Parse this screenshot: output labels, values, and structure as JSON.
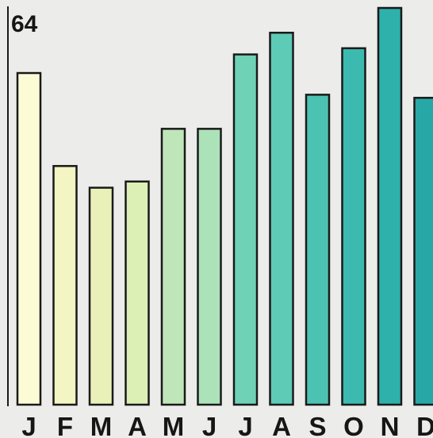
{
  "chart_data": {
    "type": "bar",
    "title": "",
    "xlabel": "",
    "ylabel": "",
    "ylim": [
      0,
      64
    ],
    "y_axis_max_label": "64",
    "grid": false,
    "legend": "none",
    "categories": [
      "J",
      "F",
      "M",
      "A",
      "M",
      "J",
      "J",
      "A",
      "S",
      "O",
      "N",
      "D"
    ],
    "values": [
      53.5,
      38.5,
      35,
      36,
      44.5,
      44.5,
      56.5,
      60,
      50,
      57.5,
      64,
      49.5
    ],
    "colors": [
      "#fbfbd6",
      "#f3f5c3",
      "#e9f1b8",
      "#dcefb5",
      "#bfe6b8",
      "#ace2b8",
      "#6fd1b6",
      "#5ecbb6",
      "#4cc2b3",
      "#3cbab0",
      "#2eb0ab",
      "#27a8a6"
    ]
  }
}
